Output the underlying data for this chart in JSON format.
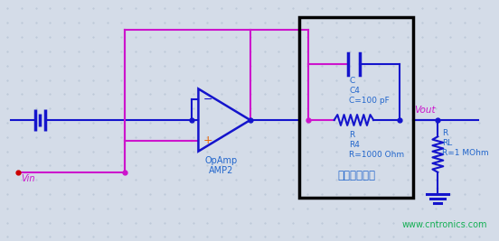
{
  "bg_color": "#d4dce8",
  "dot_color": "#bcc8d8",
  "blue": "#1414cc",
  "magenta": "#cc14cc",
  "orange": "#ee6600",
  "red": "#cc0000",
  "green": "#00aa44",
  "black": "#000000",
  "label_blue": "#2266cc",
  "watermark": "www.cntronics.com",
  "label_opamp": "OpAmp\nAMP2",
  "label_Vin": "Vin",
  "label_Vout": "Vout",
  "label_box": "脉冲增强电路",
  "label_C": "C\nC4\nC=100 pF",
  "label_R4": "R\nR4\nR=1000 Ohm",
  "label_RL": "R\nRL\nR=1 MOhm"
}
